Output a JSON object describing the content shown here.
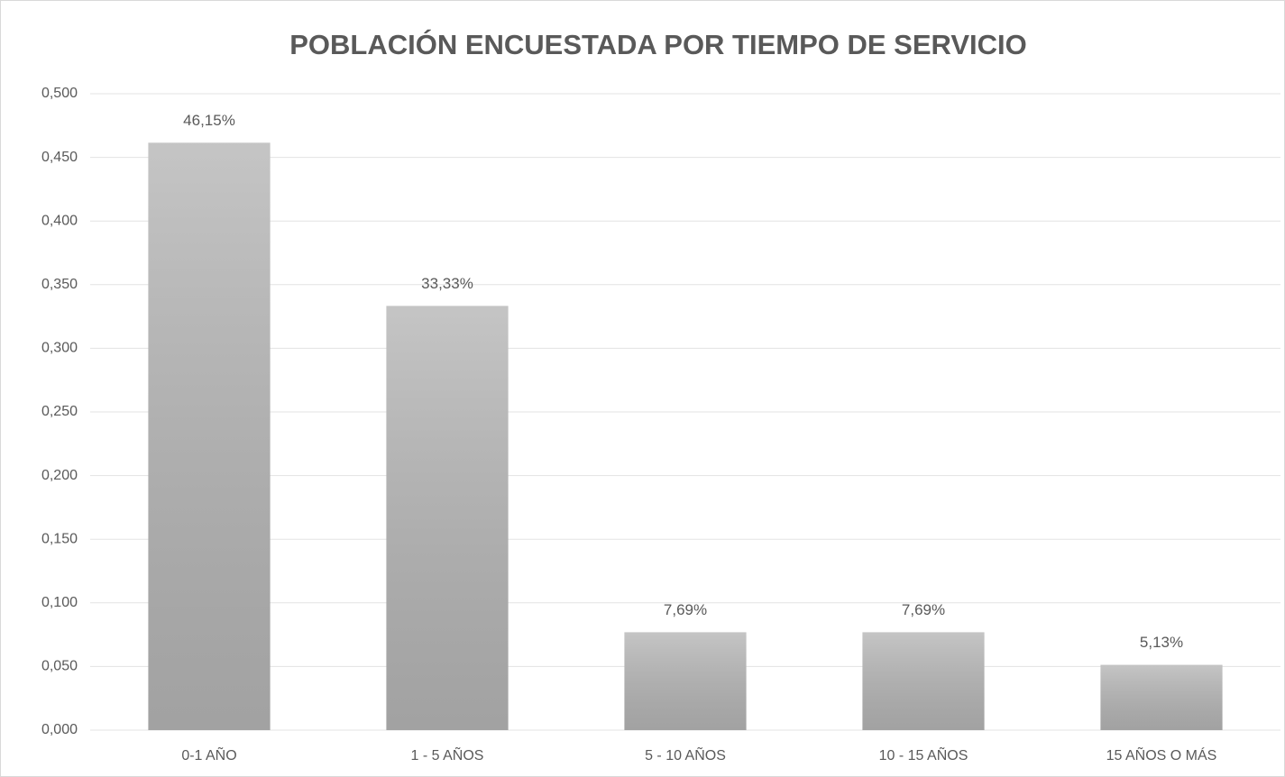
{
  "chart_data": {
    "type": "bar",
    "title": "POBLACIÓN ENCUESTADA POR TIEMPO DE SERVICIO",
    "categories": [
      "0-1 AÑO",
      "1 - 5 AÑOS",
      "5 - 10 AÑOS",
      "10 - 15 AÑOS",
      "15 AÑOS O MÁS"
    ],
    "values": [
      0.4615,
      0.3333,
      0.0769,
      0.0769,
      0.0513
    ],
    "value_labels": [
      "46,15%",
      "33,33%",
      "7,69%",
      "7,69%",
      "5,13%"
    ],
    "color": "#b8b8b8",
    "ylim": [
      0,
      0.5
    ],
    "yticks": [
      {
        "value": 0,
        "label": "0,000"
      },
      {
        "value": 0.05,
        "label": "0,050"
      },
      {
        "value": 0.1,
        "label": "0,100"
      },
      {
        "value": 0.15,
        "label": "0,150"
      },
      {
        "value": 0.2,
        "label": "0,200"
      },
      {
        "value": 0.25,
        "label": "0,250"
      },
      {
        "value": 0.3,
        "label": "0,300"
      },
      {
        "value": 0.35,
        "label": "0,350"
      },
      {
        "value": 0.4,
        "label": "0,400"
      },
      {
        "value": 0.45,
        "label": "0,450"
      },
      {
        "value": 0.5,
        "label": "0,500"
      }
    ],
    "grid": true
  }
}
